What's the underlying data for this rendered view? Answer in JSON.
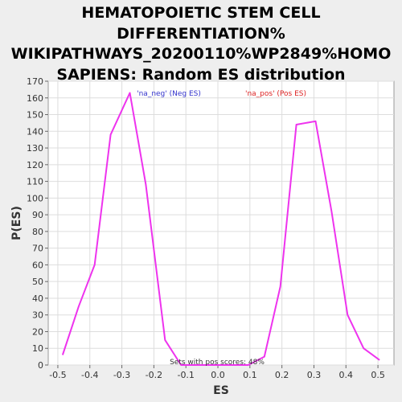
{
  "chart_data": {
    "type": "line",
    "title_lines": [
      "HEMATOPOIETIC STEM CELL",
      "DIFFERENTIATION%",
      "WIKIPATHWAYS_20200110%WP2849%HOMO",
      "SAPIENS: Random ES distribution"
    ],
    "xlabel": "ES",
    "ylabel": "P(ES)",
    "xlim": [
      -0.53,
      0.55
    ],
    "ylim": [
      0,
      170
    ],
    "x_ticks": [
      "-0.5",
      "-0.4",
      "-0.3",
      "-0.2",
      "-0.1",
      "0.0",
      "0.1",
      "0.2",
      "0.3",
      "0.4",
      "0.5"
    ],
    "y_ticks": [
      "0",
      "10",
      "20",
      "30",
      "40",
      "50",
      "60",
      "70",
      "80",
      "90",
      "100",
      "110",
      "120",
      "130",
      "140",
      "150",
      "160",
      "170"
    ],
    "grid": true,
    "legend": [
      {
        "label": "'na_neg' (Neg ES)",
        "color": "#3333cc"
      },
      {
        "label": "'na_pos' (Pos ES)",
        "color": "#dd2222"
      }
    ],
    "annotation": "Sets with pos scores: 48%",
    "series": [
      {
        "color": "#ee33ee",
        "x": [
          -0.485,
          -0.435,
          -0.385,
          -0.335,
          -0.275,
          -0.225,
          -0.165,
          -0.115,
          -0.065,
          0.0,
          0.095,
          0.145,
          0.195,
          0.245,
          0.305,
          0.355,
          0.405,
          0.455,
          0.505
        ],
        "y": [
          6,
          35,
          60,
          138,
          163,
          108,
          15,
          0,
          0,
          0,
          0,
          5,
          47,
          144,
          146,
          92,
          30,
          10,
          3
        ]
      }
    ]
  }
}
